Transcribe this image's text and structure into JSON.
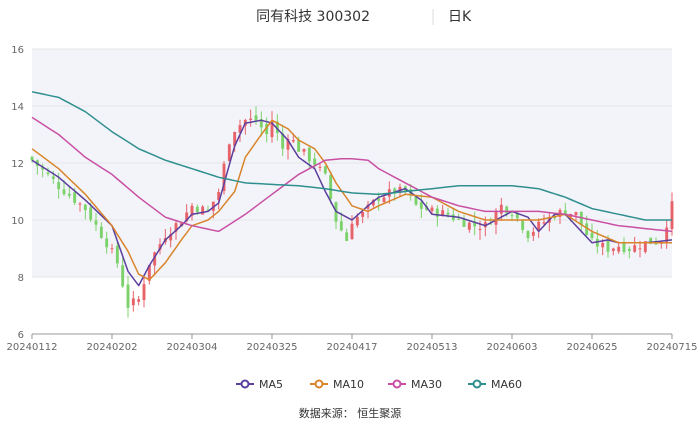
{
  "chart_data": {
    "type": "candlestick",
    "title": "同有科技 300302",
    "period": "日K",
    "source": "数据来源：  恒生聚源",
    "ylim": [
      6,
      16
    ],
    "y_ticks": [
      6,
      8,
      10,
      12,
      14,
      16
    ],
    "x_ticks": [
      "20240112",
      "20240202",
      "20240304",
      "20240325",
      "20240417",
      "20240513",
      "20240603",
      "20240625",
      "20240715"
    ],
    "x_tick_index": [
      0,
      15,
      30,
      45,
      60,
      75,
      90,
      105,
      120
    ],
    "num_candles": 121,
    "candle_mode": "random-walk-fit",
    "legend": [
      {
        "name": "MA5",
        "color": "#5b3f9e"
      },
      {
        "name": "MA10",
        "color": "#d9842b"
      },
      {
        "name": "MA30",
        "color": "#c94fa3"
      },
      {
        "name": "MA60",
        "color": "#2f8f8f"
      }
    ],
    "up_color": "#e8626a",
    "down_color": "#7cd26a",
    "series": [
      {
        "name": "MA5",
        "x": [
          0,
          5,
          10,
          15,
          18,
          20,
          22,
          25,
          28,
          30,
          33,
          35,
          38,
          40,
          43,
          45,
          48,
          50,
          53,
          55,
          57,
          60,
          63,
          65,
          70,
          73,
          75,
          80,
          85,
          90,
          93,
          95,
          98,
          100,
          103,
          105,
          108,
          110,
          115,
          120
        ],
        "values": [
          12.1,
          11.5,
          10.7,
          9.8,
          8.2,
          7.7,
          8.4,
          9.3,
          9.8,
          10.2,
          10.3,
          10.6,
          12.6,
          13.4,
          13.5,
          13.4,
          12.8,
          12.2,
          11.8,
          11.0,
          10.3,
          10.0,
          10.5,
          10.8,
          11.1,
          10.7,
          10.2,
          10.1,
          9.8,
          10.3,
          10.1,
          9.6,
          10.2,
          10.2,
          9.6,
          9.2,
          9.3,
          9.2,
          9.2,
          9.3
        ]
      },
      {
        "name": "MA10",
        "x": [
          0,
          5,
          10,
          15,
          18,
          20,
          22,
          25,
          28,
          30,
          33,
          35,
          38,
          40,
          43,
          45,
          48,
          50,
          53,
          55,
          57,
          60,
          63,
          65,
          70,
          75,
          80,
          85,
          90,
          95,
          100,
          105,
          110,
          115,
          120
        ],
        "values": [
          12.5,
          11.8,
          10.9,
          9.8,
          8.9,
          8.1,
          7.9,
          8.5,
          9.3,
          9.8,
          10.0,
          10.3,
          11.0,
          12.2,
          13.0,
          13.5,
          13.2,
          12.8,
          12.5,
          12.0,
          11.3,
          10.5,
          10.3,
          10.5,
          10.9,
          10.8,
          10.3,
          10.0,
          10.0,
          10.0,
          10.2,
          9.6,
          9.2,
          9.2,
          9.2
        ]
      },
      {
        "name": "MA30",
        "x": [
          0,
          5,
          10,
          15,
          20,
          25,
          30,
          35,
          40,
          45,
          50,
          55,
          58,
          60,
          63,
          65,
          70,
          75,
          80,
          85,
          90,
          95,
          100,
          105,
          110,
          115,
          120
        ],
        "values": [
          13.6,
          13.0,
          12.2,
          11.6,
          10.8,
          10.1,
          9.8,
          9.6,
          10.2,
          10.9,
          11.6,
          12.1,
          12.15,
          12.15,
          12.1,
          11.8,
          11.3,
          10.8,
          10.5,
          10.3,
          10.3,
          10.3,
          10.2,
          10.0,
          9.8,
          9.7,
          9.6
        ]
      },
      {
        "name": "MA60",
        "x": [
          0,
          5,
          10,
          15,
          20,
          25,
          30,
          35,
          40,
          45,
          50,
          55,
          60,
          65,
          70,
          75,
          80,
          85,
          90,
          95,
          100,
          105,
          110,
          115,
          120
        ],
        "values": [
          14.5,
          14.3,
          13.8,
          13.1,
          12.5,
          12.1,
          11.8,
          11.5,
          11.3,
          11.25,
          11.2,
          11.1,
          10.95,
          10.9,
          11.0,
          11.1,
          11.2,
          11.2,
          11.2,
          11.1,
          10.8,
          10.4,
          10.2,
          10.0,
          10.0
        ]
      }
    ],
    "close_anchors": {
      "x": [
        0,
        5,
        10,
        14,
        16,
        18,
        20,
        22,
        25,
        28,
        30,
        33,
        35,
        37,
        38,
        40,
        42,
        44,
        45,
        47,
        48,
        50,
        53,
        55,
        57,
        59,
        60,
        62,
        65,
        68,
        70,
        72,
        75,
        78,
        80,
        83,
        85,
        88,
        90,
        92,
        93,
        95,
        98,
        100,
        102,
        104,
        105,
        108,
        110,
        112,
        115,
        118,
        120
      ],
      "values": [
        12.1,
        11.2,
        10.4,
        9.2,
        8.5,
        7.0,
        7.2,
        8.5,
        9.5,
        10.0,
        10.5,
        10.3,
        11.0,
        12.8,
        13.2,
        13.5,
        13.5,
        13.0,
        13.5,
        12.5,
        13.0,
        12.5,
        12.0,
        11.5,
        10.0,
        9.3,
        10.0,
        10.2,
        10.8,
        11.0,
        11.0,
        10.5,
        10.3,
        10.2,
        10.0,
        9.8,
        9.8,
        10.5,
        10.3,
        9.8,
        9.5,
        9.8,
        10.2,
        10.3,
        10.2,
        9.5,
        9.2,
        9.0,
        9.1,
        9.0,
        9.2,
        9.3,
        10.5
      ]
    }
  }
}
